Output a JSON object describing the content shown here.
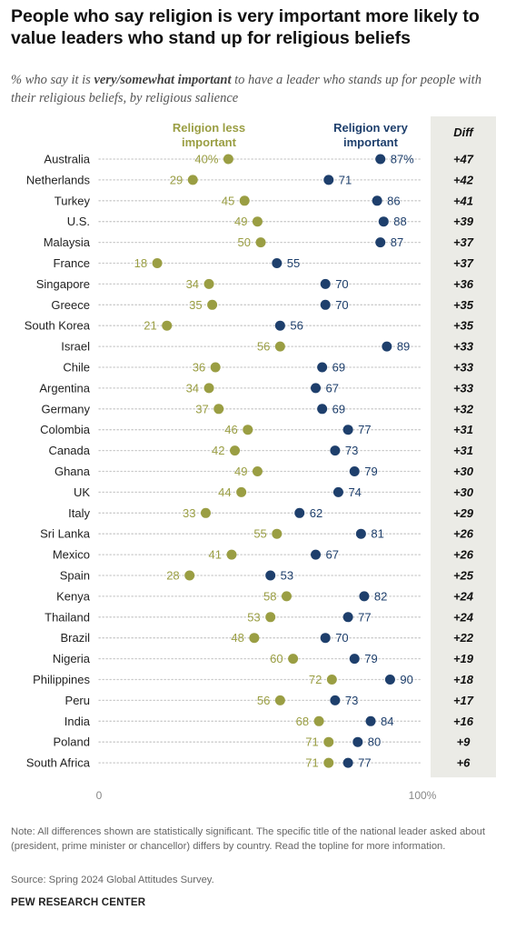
{
  "title": "People who say religion is very important more likely to value leaders who stand up for religious beliefs",
  "subtitle": {
    "pre": "% who say it is ",
    "emph": "very/somewhat important",
    "post": " to have a leader who stands up for people with their religious beliefs, by religious salience"
  },
  "colors": {
    "less": "#9a9e43",
    "very": "#1e3f6c",
    "diff_bg": "#ebebe6",
    "dots": "#c9c9c9"
  },
  "chart_data": {
    "type": "dot",
    "diff_header": "Diff",
    "series": [
      {
        "name": "Religion less important",
        "name_lines": [
          "Religion less",
          "important"
        ]
      },
      {
        "name": "Religion very important",
        "name_lines": [
          "Religion very",
          "important"
        ]
      }
    ],
    "xlim": [
      0,
      100
    ],
    "x_tick_labels": [
      "0",
      "100%"
    ],
    "rows": [
      {
        "country": "Australia",
        "less": 40,
        "very": 87,
        "diff": "+47"
      },
      {
        "country": "Netherlands",
        "less": 29,
        "very": 71,
        "diff": "+42"
      },
      {
        "country": "Turkey",
        "less": 45,
        "very": 86,
        "diff": "+41"
      },
      {
        "country": "U.S.",
        "less": 49,
        "very": 88,
        "diff": "+39"
      },
      {
        "country": "Malaysia",
        "less": 50,
        "very": 87,
        "diff": "+37"
      },
      {
        "country": "France",
        "less": 18,
        "very": 55,
        "diff": "+37"
      },
      {
        "country": "Singapore",
        "less": 34,
        "very": 70,
        "diff": "+36"
      },
      {
        "country": "Greece",
        "less": 35,
        "very": 70,
        "diff": "+35"
      },
      {
        "country": "South Korea",
        "less": 21,
        "very": 56,
        "diff": "+35"
      },
      {
        "country": "Israel",
        "less": 56,
        "very": 89,
        "diff": "+33"
      },
      {
        "country": "Chile",
        "less": 36,
        "very": 69,
        "diff": "+33"
      },
      {
        "country": "Argentina",
        "less": 34,
        "very": 67,
        "diff": "+33"
      },
      {
        "country": "Germany",
        "less": 37,
        "very": 69,
        "diff": "+32"
      },
      {
        "country": "Colombia",
        "less": 46,
        "very": 77,
        "diff": "+31"
      },
      {
        "country": "Canada",
        "less": 42,
        "very": 73,
        "diff": "+31"
      },
      {
        "country": "Ghana",
        "less": 49,
        "very": 79,
        "diff": "+30"
      },
      {
        "country": "UK",
        "less": 44,
        "very": 74,
        "diff": "+30"
      },
      {
        "country": "Italy",
        "less": 33,
        "very": 62,
        "diff": "+29"
      },
      {
        "country": "Sri Lanka",
        "less": 55,
        "very": 81,
        "diff": "+26"
      },
      {
        "country": "Mexico",
        "less": 41,
        "very": 67,
        "diff": "+26"
      },
      {
        "country": "Spain",
        "less": 28,
        "very": 53,
        "diff": "+25"
      },
      {
        "country": "Kenya",
        "less": 58,
        "very": 82,
        "diff": "+24"
      },
      {
        "country": "Thailand",
        "less": 53,
        "very": 77,
        "diff": "+24"
      },
      {
        "country": "Brazil",
        "less": 48,
        "very": 70,
        "diff": "+22"
      },
      {
        "country": "Nigeria",
        "less": 60,
        "very": 79,
        "diff": "+19"
      },
      {
        "country": "Philippines",
        "less": 72,
        "very": 90,
        "diff": "+18"
      },
      {
        "country": "Peru",
        "less": 56,
        "very": 73,
        "diff": "+17"
      },
      {
        "country": "India",
        "less": 68,
        "very": 84,
        "diff": "+16"
      },
      {
        "country": "Poland",
        "less": 71,
        "very": 80,
        "diff": "+9"
      },
      {
        "country": "South Africa",
        "less": 71,
        "very": 77,
        "diff": "+6"
      }
    ]
  },
  "note": "Note: All differences shown are statistically significant. The specific title of the national leader asked about (president, prime minister or chancellor) differs by country. Read the topline for more information.",
  "source": "Source: Spring 2024 Global Attitudes Survey.",
  "org": "PEW RESEARCH CENTER"
}
